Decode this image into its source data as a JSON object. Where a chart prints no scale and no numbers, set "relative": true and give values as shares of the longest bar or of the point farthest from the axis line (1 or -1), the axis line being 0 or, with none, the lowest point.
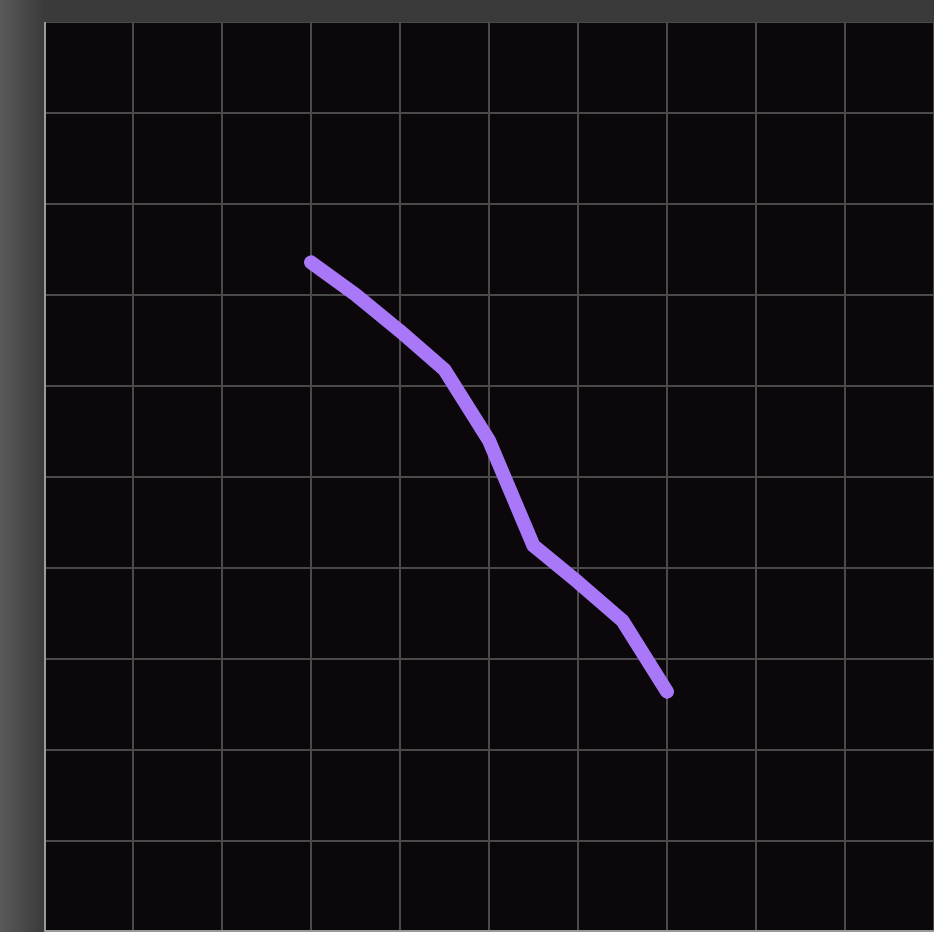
{
  "chart_data": {
    "type": "line",
    "relative": true,
    "grid": true,
    "marker": "none",
    "line_style": "solid",
    "categories": [
      null,
      null,
      null,
      null,
      null,
      null,
      null,
      null,
      null,
      null,
      null,
      null,
      null,
      null,
      null,
      null,
      null,
      null,
      null,
      null,
      null
    ],
    "series": [
      {
        "color": "#a878f8",
        "values": [
          null,
          null,
          null,
          null,
          null,
          null,
          1.0,
          0.85,
          0.68,
          0.5,
          0.17,
          -0.32,
          -0.49,
          -0.67,
          -1.0,
          null,
          null,
          null,
          null,
          null,
          null
        ]
      }
    ]
  }
}
